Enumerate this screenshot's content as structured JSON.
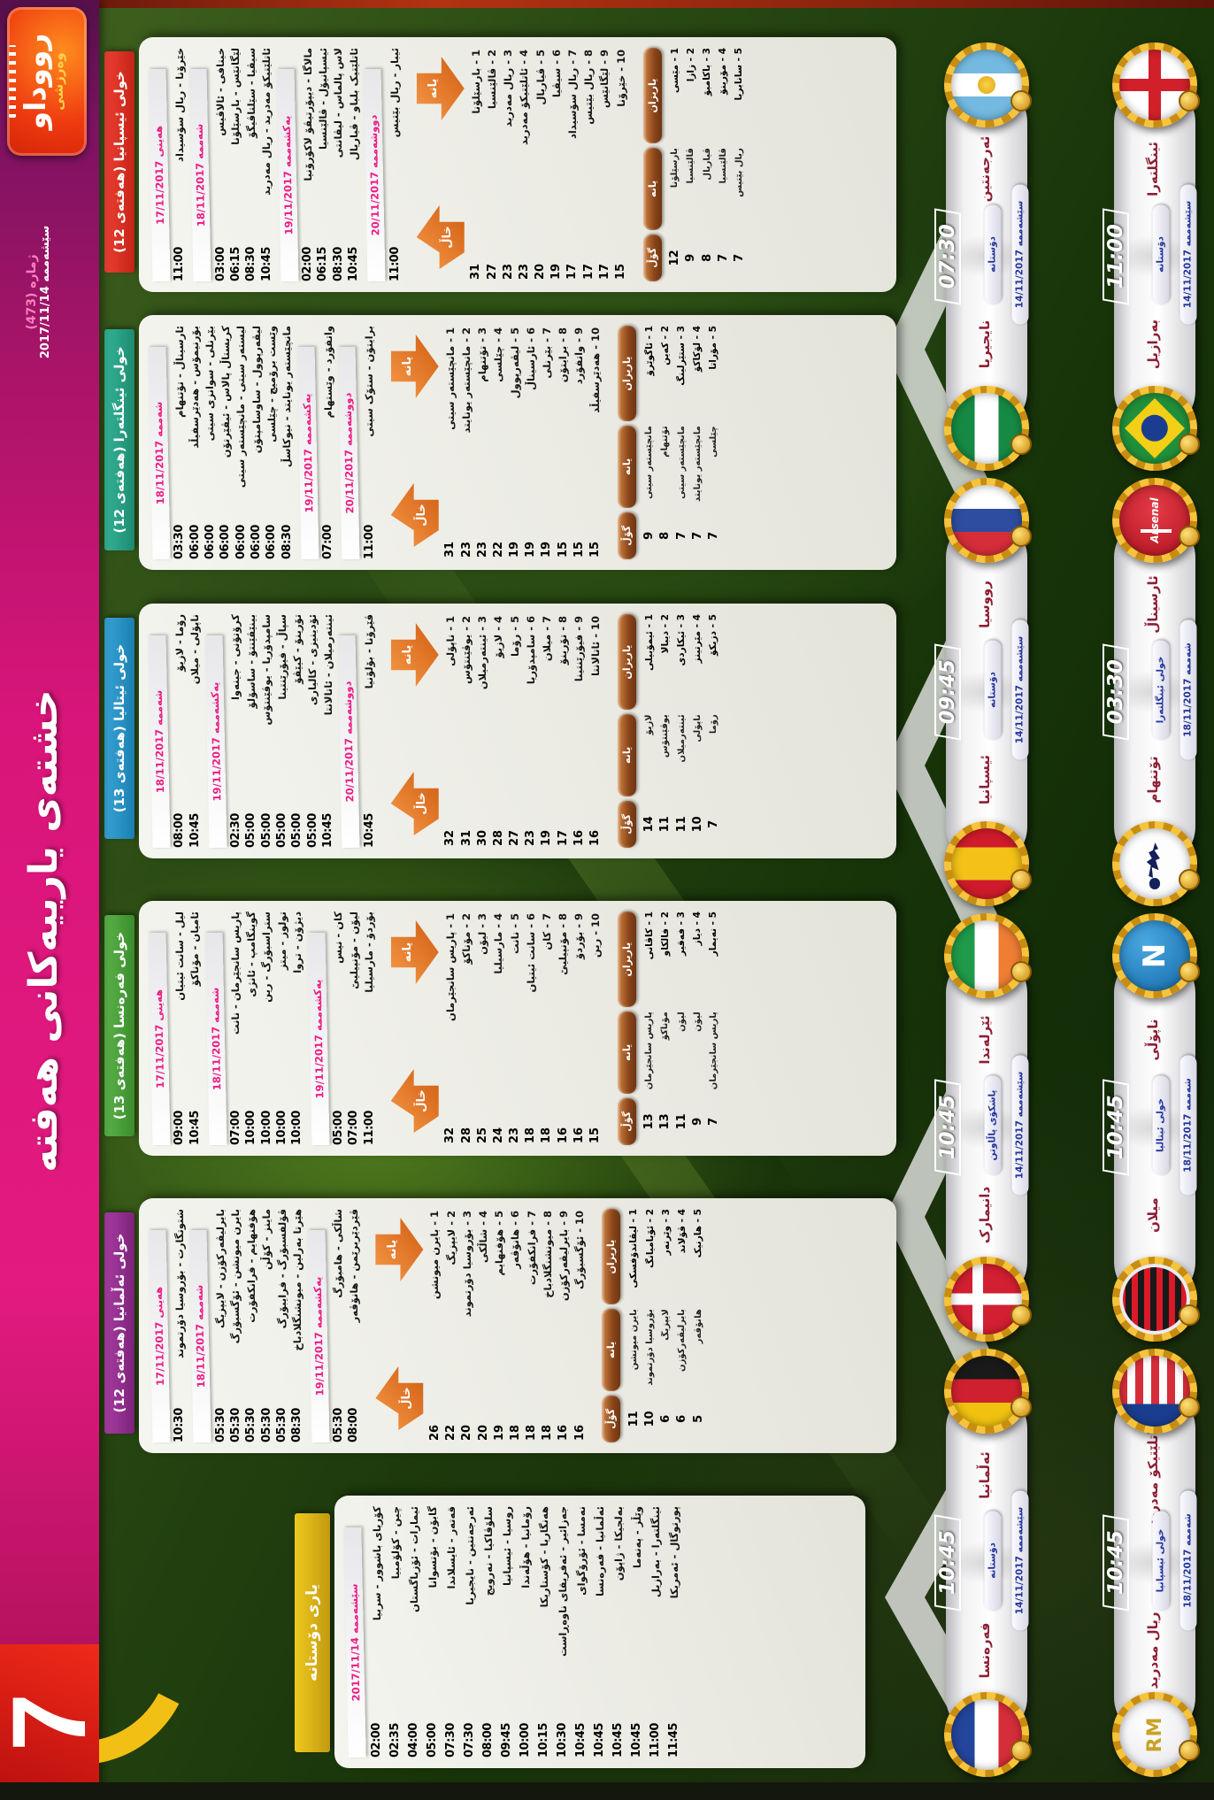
{
  "page": {
    "number": "7",
    "masthead": "رووداو",
    "masthead_sub": "وەرزشی",
    "edition": "ژماره (473)",
    "issue_date": "سێشەممە 2017/11/14",
    "main_title": "خشتەی یارییەکانی هەفتە"
  },
  "labels": {
    "team": "یانە",
    "points": "خاڵ",
    "player": "یاریزان",
    "goals": "گۆڵ"
  },
  "crest_texts": {
    "napoli": "N",
    "realmadrid": "RM",
    "arsenal": "Arsenal"
  },
  "panels": [
    {
      "id": "spain",
      "theme": "red",
      "title": "خولی ئیسپانیا (هەفتەی 12)",
      "groups": [
        {
          "date": "هەینی 17/11/2017",
          "matches": [
            [
              "خێرۆنا - ريال سۆسیداد",
              "11:00"
            ]
          ]
        },
        {
          "date": "شەممە 18/11/2017",
          "matches": [
            [
              "خیتافی - ئالاڤیس",
              "03:00"
            ],
            [
              "لێگانێس - بارسێلۆنا",
              "06:15"
            ],
            [
              "سیڤیا - سێلتاڤیگۆ",
              "08:30"
            ],
            [
              "ئاتلێتیکۆ مەدرید - ريال مەدرید",
              "10:45"
            ]
          ]
        },
        {
          "date": "یەکشەممە 19/11/2017",
          "matches": [
            [
              "مالاگا - دیپۆرتیڤۆ لاکۆرۆنیا",
              "02:00"
            ],
            [
              "ئیسپانیۆل - ڤالێنسیا",
              "06:15"
            ],
            [
              "لاس پالماس - لیڤانتی",
              "08:30"
            ],
            [
              "ئاتلێتیک بلباو - ڤیاريال",
              "10:45"
            ]
          ]
        },
        {
          "date": "دووشەممە 20/11/2017",
          "matches": [
            [
              "ئیبار - ريال بێتیس",
              "11:00"
            ]
          ]
        }
      ],
      "standings": [
        [
          "بارسێلۆنا",
          31
        ],
        [
          "ڤالێنسیا",
          27
        ],
        [
          "ريال مەدرید",
          23
        ],
        [
          "ئاتلێتیکۆ مەدرید",
          23
        ],
        [
          "ڤیاريال",
          20
        ],
        [
          "سیڤیا",
          19
        ],
        [
          "ريال سۆسیداد",
          17
        ],
        [
          "ريال بێتیس",
          17
        ],
        [
          "لێگانێس",
          17
        ],
        [
          "خێرۆنا",
          15
        ]
      ],
      "scorers": [
        [
          "مێسی",
          "بارسێلۆنا",
          12
        ],
        [
          "زازا",
          "ڤالێنسیا",
          9
        ],
        [
          "باکامبۆ",
          "ڤیاريال",
          8
        ],
        [
          "مۆرینۆ",
          "ڤالێنسیا",
          7
        ],
        [
          "سانابریا",
          "ريال بێتیس",
          7
        ]
      ]
    },
    {
      "id": "england",
      "theme": "teal",
      "title": "خولی ئینگلتەرا (هەفتەی 12)",
      "groups": [
        {
          "date": "شەممە 18/11/2017",
          "matches": [
            [
              "ئارسیناڵ - تۆتنهام",
              "03:30"
            ],
            [
              "بۆرنیمۆس - هەدێرسفیڵد",
              "06:00"
            ],
            [
              "بێرنلی - سوانزی سیتی",
              "06:00"
            ],
            [
              "کریستاڵ پالاس - ئیڤێرتۆن",
              "06:00"
            ],
            [
              "لیستەر سیتی - مانچێستەر سیتی",
              "06:00"
            ],
            [
              "لیڤەرپوول - ساوسامپتۆن",
              "06:00"
            ],
            [
              "وێست برۆمیچ - چێلسی",
              "06:00"
            ],
            [
              "مانچێستەر یونایتد - نیوکاسڵ",
              "08:30"
            ]
          ]
        },
        {
          "date": "یەکشەممە 19/11/2017",
          "matches": [
            [
              "واتفۆرد - وێستهام",
              "07:00"
            ]
          ]
        },
        {
          "date": "دووشەممە 20/11/2017",
          "matches": [
            [
              "برایتۆن - ستۆک سیتی",
              "11:00"
            ]
          ]
        }
      ],
      "standings": [
        [
          "مانچێستەر سیتی",
          31
        ],
        [
          "مانچێستەر یونایتد",
          23
        ],
        [
          "تۆتنهام",
          23
        ],
        [
          "چێلسی",
          22
        ],
        [
          "لیڤەرپوول",
          19
        ],
        [
          "ئارسیناڵ",
          19
        ],
        [
          "بێرنلی",
          19
        ],
        [
          "برایتۆن",
          15
        ],
        [
          "واتفۆرد",
          15
        ],
        [
          "هەدێرسفیڵد",
          15
        ]
      ],
      "scorers": [
        [
          "ئاگوێرۆ",
          "مانچێستەر سیتی",
          9
        ],
        [
          "کەین",
          "تۆتنهام",
          8
        ],
        [
          "ستێرلینگ",
          "مانچێستەر سیتی",
          7
        ],
        [
          "لۆکاکۆ",
          "مانچێستەر یونایتد",
          7
        ],
        [
          "مۆراتا",
          "چێلسی",
          7
        ]
      ]
    },
    {
      "id": "italy",
      "theme": "blue",
      "title": "خولی ئیتالیا (هەفتەی 13)",
      "groups": [
        {
          "date": "شەممە 18/11/2017",
          "matches": [
            [
              "رۆما - لازیۆ",
              "08:00"
            ],
            [
              "ناپۆلی - میلان",
              "10:45"
            ]
          ]
        },
        {
          "date": "یەکشەممە 19/11/2017",
          "matches": [
            [
              "کرۆتۆنی - جینەوا",
              "02:30"
            ],
            [
              "بینێڤێنتۆ - ساسۆلۆ",
              "05:00"
            ],
            [
              "سامپدۆریا - یوڤێنتۆس",
              "05:00"
            ],
            [
              "سپاڵ - فیۆرێنتینا",
              "05:00"
            ],
            [
              "تۆرینۆ - کیێڤۆ",
              "05:00"
            ],
            [
              "ئۆدینیزی - کالیاری",
              "05:00"
            ],
            [
              "ئینتەرمیلان - ئاتالانتا",
              "10:45"
            ]
          ]
        },
        {
          "date": "دووشەممە 20/11/2017",
          "matches": [
            [
              "ڤێرۆنا - بۆلۆنیا",
              "10:45"
            ]
          ]
        }
      ],
      "standings": [
        [
          "ناپۆلی",
          32
        ],
        [
          "یوڤێنتۆس",
          31
        ],
        [
          "ئینتەرمیلان",
          30
        ],
        [
          "لازیۆ",
          28
        ],
        [
          "رۆما",
          27
        ],
        [
          "سامپدۆریا",
          23
        ],
        [
          "میلان",
          19
        ],
        [
          "تۆرینۆ",
          17
        ],
        [
          "فیۆرێنتینا",
          16
        ],
        [
          "ئاتالانتا",
          16
        ]
      ],
      "scorers": [
        [
          "ئیمۆبیلی",
          "لازیۆ",
          14
        ],
        [
          "دیبالا",
          "یوڤێنتۆس",
          11
        ],
        [
          "ئیکاردی",
          "ئینتەرمیلان",
          11
        ],
        [
          "مێرتینز",
          "ناپۆلی",
          10
        ],
        [
          "دزیکۆ",
          "رۆما",
          7
        ]
      ]
    },
    {
      "id": "france",
      "theme": "green",
      "title": "خولی فەرەنسا (هەفتەی 13)",
      "groups": [
        {
          "date": "هەینی 17/11/2017",
          "matches": [
            [
              "لیل - سانت ئیتیان",
              "09:00"
            ],
            [
              "ئامیان - مۆناکۆ",
              "10:45"
            ]
          ]
        },
        {
          "date": "شەممە 18/11/2017",
          "matches": [
            [
              "پاریس سانجێرمان - نانت",
              "07:00"
            ],
            [
              "گوینگامپ - ئانژی",
              "10:00"
            ],
            [
              "ستراسبۆرگ - رین",
              "10:00"
            ],
            [
              "تولوز - میتز",
              "10:00"
            ],
            [
              "دیژۆن - تروا",
              "10:00"
            ]
          ]
        },
        {
          "date": "یەکشەممە 19/11/2017",
          "matches": [
            [
              "کان - نیس",
              "05:00"
            ],
            [
              "لیۆن - مۆنپیلیێ",
              "07:00"
            ],
            [
              "بۆردۆ - مارسیلیا",
              "11:00"
            ]
          ]
        }
      ],
      "standings": [
        [
          "پاریس سانجێرمان",
          32
        ],
        [
          "مۆناکۆ",
          28
        ],
        [
          "لیۆن",
          25
        ],
        [
          "مارسیلیا",
          24
        ],
        [
          "نانت",
          23
        ],
        [
          "سانت ئیتیان",
          18
        ],
        [
          "کان",
          18
        ],
        [
          "مۆنپیلیێ",
          16
        ],
        [
          "بۆردۆ",
          16
        ],
        [
          "رین",
          15
        ]
      ],
      "scorers": [
        [
          "کاڤانی",
          "پاریس سانجێرمان",
          13
        ],
        [
          "فالکاو",
          "مۆناکۆ",
          13
        ],
        [
          "فەقیر",
          "لیۆن",
          11
        ],
        [
          "دیاز",
          "لیۆن",
          9
        ],
        [
          "نەیمار",
          "پاریس سانجێرمان",
          7
        ]
      ]
    },
    {
      "id": "germany",
      "theme": "purple",
      "title": "خولی ئەڵمانیا (هەفتەی 12)",
      "groups": [
        {
          "date": "هەینی 17/11/2017",
          "matches": [
            [
              "شتوتگارت - بۆروسیا دۆرتموند",
              "10:30"
            ]
          ]
        },
        {
          "date": "شەممە 18/11/2017",
          "matches": [
            [
              "بایرلیڤەرکۆزن - لایپزیگ",
              "05:30"
            ],
            [
              "بایرن میونشن - ئۆگسبۆرگ",
              "05:30"
            ],
            [
              "هۆفنهایم - فرانکفۆرت",
              "05:30"
            ],
            [
              "ماینز - کۆڵن",
              "05:30"
            ],
            [
              "ڤۆلفسبۆرگ - فرایبۆرگ",
              "05:30"
            ],
            [
              "هێرتا بەرلین - میونشنگلادباخ",
              "08:30"
            ]
          ]
        },
        {
          "date": "یەکشەممە 19/11/2017",
          "matches": [
            [
              "شاڵکی - هامبۆرگ",
              "05:30"
            ],
            [
              "ڤێردێربرێمن - هانۆڤەر",
              "08:00"
            ]
          ]
        }
      ],
      "standings": [
        [
          "بایرن میونشن",
          26
        ],
        [
          "لایپزیگ",
          22
        ],
        [
          "بۆروسیا دۆرتموند",
          20
        ],
        [
          "شاڵکی",
          20
        ],
        [
          "هۆفنهایم",
          19
        ],
        [
          "هانۆڤەر",
          18
        ],
        [
          "فرانکفۆرت",
          18
        ],
        [
          "میونشنگلادباخ",
          18
        ],
        [
          "بایرلیڤەرکۆزن",
          16
        ],
        [
          "ئۆگسبۆرگ",
          16
        ]
      ],
      "scorers": [
        [
          "لیڤاندۆفسکی",
          "بایرن میونشن",
          11
        ],
        [
          "ئۆبامیانگ",
          "بۆروسیا دۆرتموند",
          10
        ],
        [
          "وێرنەر",
          "لایپزیگ",
          6
        ],
        [
          "ڤۆلاند",
          "بایرلیڤەرکۆزن",
          6
        ],
        [
          "هارنیک",
          "هانۆڤەر",
          5
        ]
      ]
    },
    {
      "id": "friendly",
      "theme": "yellow",
      "title": "یاری دۆستانە",
      "groups": [
        {
          "date": "سێشەممە 2017/11/14",
          "matches": [
            [
              "کۆریای باشوور - سربیا",
              "02:00"
            ],
            [
              "چین - کۆلۆمبیا",
              "02:35"
            ],
            [
              "ئیمارات - ئۆزباگستان",
              "04:00"
            ],
            [
              "گابۆن - بۆتسوانا",
              "05:00"
            ],
            [
              "قەتەر - ئایسلاندا",
              "07:30"
            ],
            [
              "ئەرجەنتین - نایجیریا",
              "07:30"
            ],
            [
              "سلۆڤاکیا - نەرویج",
              "08:00"
            ],
            [
              "روسیا - ئیسپانیا",
              "09:45"
            ],
            [
              "رۆمانیا - هۆڵەندا",
              "10:00"
            ],
            [
              "هەنگاریا - کۆستاریکا",
              "10:15"
            ],
            [
              "جەزائیر - ئەفریقای ناوەڕاست",
              "10:30"
            ],
            [
              "نەمسا - ئۆرۆگوای",
              "10:45"
            ],
            [
              "ئەڵمانیا - فەرەنسا",
              "10:45"
            ],
            [
              "بەلجیکا - ژاپۆن",
              "10:45"
            ],
            [
              "وێڵز - پەنەما",
              "10:45"
            ],
            [
              "ئینگلتەرا - بەرازیل",
              "11:00"
            ],
            [
              "پورتوگال - ئەمریکا",
              "11:45"
            ]
          ]
        }
      ]
    }
  ],
  "banners": {
    "left": [
      {
        "team_a": "ئەرجەنتین",
        "crest_a": "argentina",
        "team_b": "نایجیریا",
        "crest_b": "nigeria",
        "competition": "دۆستانە",
        "date": "سێشەممە 14/11/2017",
        "time": "07:30"
      },
      {
        "team_a": "رووسیا",
        "crest_a": "russia",
        "team_b": "ئیسپانیا",
        "crest_b": "spainflag",
        "competition": "دۆستانە",
        "date": "سێشەممە 14/11/2017",
        "time": "09:45"
      },
      {
        "team_a": "ئێرلەندا",
        "crest_a": "ireland",
        "team_b": "دانیمارک",
        "crest_b": "denmark",
        "competition": "پاشکۆی پاڵاوتن",
        "date": "سێشەممە 14/11/2017",
        "time": "10:45"
      },
      {
        "team_a": "ئەڵمانیا",
        "crest_a": "germany",
        "team_b": "فەرەنسا",
        "crest_b": "france",
        "competition": "دۆستانە",
        "date": "سێشەممە 14/11/2017",
        "time": "10:45"
      }
    ],
    "right": [
      {
        "team_a": "ئینگلتەرا",
        "crest_a": "england",
        "team_b": "بەرازیل",
        "crest_b": "brazil",
        "competition": "دۆستانە",
        "date": "سێشەممە 14/11/2017",
        "time": "11:00"
      },
      {
        "team_a": "ئارسیناڵ",
        "crest_a": "arsenal",
        "team_b": "تۆتنهام",
        "crest_b": "tottenham",
        "competition": "خولی ئینگلتەرا",
        "date": "شەممە 18/11/2017",
        "time": "03:30"
      },
      {
        "team_a": "ناپۆڵی",
        "crest_a": "napoli",
        "team_b": "میلان",
        "crest_b": "milan",
        "competition": "خولی ئیتالیا",
        "date": "شەممە 18/11/2017",
        "time": "10:45"
      },
      {
        "team_a": "ئاتلێتیکۆ مەدرید",
        "crest_a": "atletico",
        "team_b": "ريال مەدرید",
        "crest_b": "realmadrid",
        "competition": "خولی ئیسپانیا",
        "date": "شەممە 18/11/2017",
        "time": "10:45"
      }
    ]
  }
}
